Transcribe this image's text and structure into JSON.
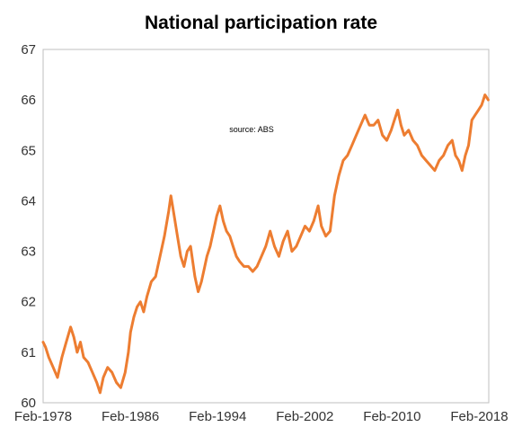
{
  "chart_data": {
    "type": "line",
    "title": "National participation rate",
    "annotation": "source:  ABS",
    "xlabel": "",
    "ylabel": "",
    "ylim": [
      60,
      67
    ],
    "yticks": [
      60,
      61,
      62,
      63,
      64,
      65,
      66,
      67
    ],
    "xticks": [
      "Feb-1978",
      "Feb-1986",
      "Feb-1994",
      "Feb-2002",
      "Feb-2010",
      "Feb-2018"
    ],
    "x_range": [
      "Feb-1978",
      "Nov-2018"
    ],
    "grid": false,
    "legend": "none",
    "line_color": "#ed7d31",
    "series": [
      {
        "x": [
          1978.08,
          1978.3,
          1978.6,
          1979.0,
          1979.4,
          1979.8,
          1980.2,
          1980.6,
          1980.9,
          1981.2,
          1981.5,
          1981.8,
          1982.2,
          1982.6,
          1983.0,
          1983.3,
          1983.6,
          1984.0,
          1984.4,
          1984.8,
          1985.2,
          1985.6,
          1985.9,
          1986.1,
          1986.4,
          1986.7,
          1987.0,
          1987.3,
          1987.6,
          1988.0,
          1988.4,
          1988.8,
          1989.2,
          1989.6,
          1989.8,
          1990.1,
          1990.4,
          1990.7,
          1991.0,
          1991.3,
          1991.6,
          1992.0,
          1992.3,
          1992.6,
          1992.9,
          1993.1,
          1993.4,
          1993.7,
          1994.0,
          1994.3,
          1994.6,
          1994.9,
          1995.2,
          1995.5,
          1995.8,
          1996.1,
          1996.5,
          1996.9,
          1997.3,
          1997.7,
          1998.1,
          1998.5,
          1998.9,
          1999.3,
          1999.7,
          2000.1,
          2000.5,
          2000.9,
          2001.3,
          2001.7,
          2002.1,
          2002.5,
          2002.9,
          2003.3,
          2003.6,
          2004.0,
          2004.4,
          2004.8,
          2005.2,
          2005.6,
          2006.0,
          2006.4,
          2006.8,
          2007.2,
          2007.6,
          2008.0,
          2008.4,
          2008.8,
          2009.2,
          2009.6,
          2010.0,
          2010.3,
          2010.6,
          2010.9,
          2011.2,
          2011.6,
          2012.0,
          2012.4,
          2012.8,
          2013.2,
          2013.6,
          2014.0,
          2014.4,
          2014.8,
          2015.2,
          2015.6,
          2015.9,
          2016.2,
          2016.5,
          2016.8,
          2017.1,
          2017.4,
          2017.7,
          2018.0,
          2018.3,
          2018.6,
          2018.9
        ],
        "y": [
          61.2,
          61.1,
          60.9,
          60.7,
          60.5,
          60.9,
          61.2,
          61.5,
          61.3,
          61.0,
          61.2,
          60.9,
          60.8,
          60.6,
          60.4,
          60.2,
          60.5,
          60.7,
          60.6,
          60.4,
          60.3,
          60.6,
          61.0,
          61.4,
          61.7,
          61.9,
          62.0,
          61.8,
          62.1,
          62.4,
          62.5,
          62.9,
          63.3,
          63.8,
          64.1,
          63.7,
          63.3,
          62.9,
          62.7,
          63.0,
          63.1,
          62.5,
          62.2,
          62.4,
          62.7,
          62.9,
          63.1,
          63.4,
          63.7,
          63.9,
          63.6,
          63.4,
          63.3,
          63.1,
          62.9,
          62.8,
          62.7,
          62.7,
          62.6,
          62.7,
          62.9,
          63.1,
          63.4,
          63.1,
          62.9,
          63.2,
          63.4,
          63.0,
          63.1,
          63.3,
          63.5,
          63.4,
          63.6,
          63.9,
          63.5,
          63.3,
          63.4,
          64.1,
          64.5,
          64.8,
          64.9,
          65.1,
          65.3,
          65.5,
          65.7,
          65.5,
          65.5,
          65.6,
          65.3,
          65.2,
          65.4,
          65.6,
          65.8,
          65.5,
          65.3,
          65.4,
          65.2,
          65.1,
          64.9,
          64.8,
          64.7,
          64.6,
          64.8,
          64.9,
          65.1,
          65.2,
          64.9,
          64.8,
          64.6,
          64.9,
          65.1,
          65.6,
          65.7,
          65.8,
          65.9,
          66.1,
          66.0
        ]
      }
    ]
  }
}
